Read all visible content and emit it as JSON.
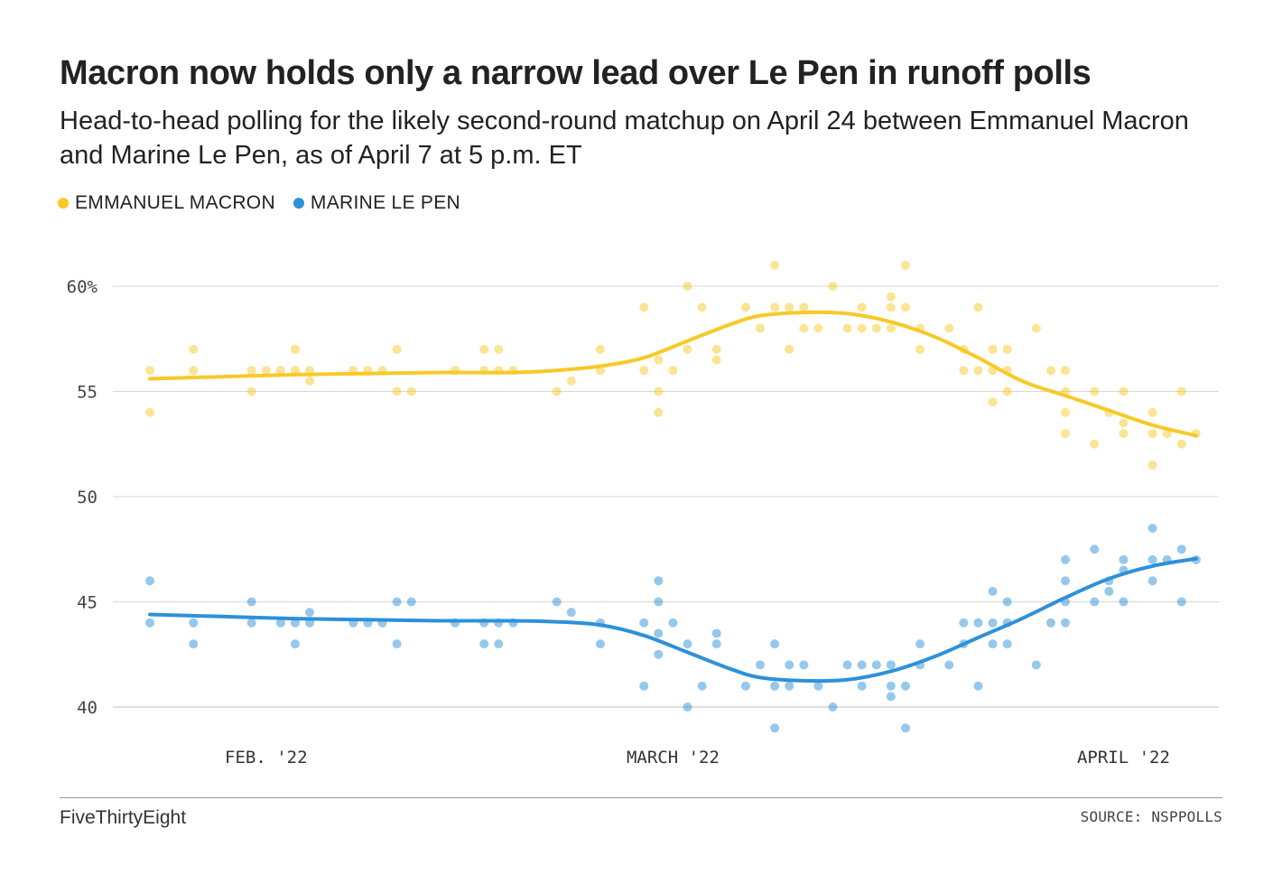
{
  "chart_data": {
    "type": "scatter",
    "title": "Macron now holds only a narrow lead over Le Pen in runoff polls",
    "subtitle": "Head-to-head polling for the likely second-round matchup on April 24 between Emmanuel Macron and Marine Le Pen, as of April 7 at 5 p.m. ET",
    "xlabel": "",
    "ylabel": "",
    "ylim": [
      38,
      62
    ],
    "y_ticks": [
      {
        "value": 60,
        "label": "60%"
      },
      {
        "value": 55,
        "label": "55"
      },
      {
        "value": 50,
        "label": "50"
      },
      {
        "value": 45,
        "label": "45"
      },
      {
        "value": 40,
        "label": "40"
      }
    ],
    "x_domain": [
      0,
      73
    ],
    "x_ticks": [
      {
        "value": 8,
        "label": "FEB. '22"
      },
      {
        "value": 36,
        "label": "MARCH '22"
      },
      {
        "value": 67,
        "label": "APRIL '22"
      }
    ],
    "grid": true,
    "series": [
      {
        "name": "EMMANUEL MACRON",
        "color": "#F8C927",
        "points": [
          [
            0,
            56
          ],
          [
            0,
            54
          ],
          [
            3,
            56
          ],
          [
            3,
            57
          ],
          [
            7,
            56
          ],
          [
            7,
            55
          ],
          [
            8,
            56
          ],
          [
            9,
            56
          ],
          [
            10,
            56
          ],
          [
            10,
            57
          ],
          [
            11,
            56
          ],
          [
            11,
            55.5
          ],
          [
            14,
            56
          ],
          [
            15,
            56
          ],
          [
            16,
            56
          ],
          [
            17,
            57
          ],
          [
            17,
            55
          ],
          [
            18,
            55
          ],
          [
            21,
            56
          ],
          [
            23,
            56
          ],
          [
            23,
            57
          ],
          [
            24,
            56
          ],
          [
            24,
            57
          ],
          [
            25,
            56
          ],
          [
            28,
            55
          ],
          [
            29,
            55.5
          ],
          [
            31,
            57
          ],
          [
            31,
            56
          ],
          [
            34,
            59
          ],
          [
            34,
            56
          ],
          [
            35,
            56.5
          ],
          [
            35,
            55
          ],
          [
            35,
            54
          ],
          [
            36,
            56
          ],
          [
            37,
            60
          ],
          [
            37,
            57
          ],
          [
            38,
            59
          ],
          [
            39,
            57
          ],
          [
            39,
            56.5
          ],
          [
            41,
            59
          ],
          [
            42,
            58
          ],
          [
            43,
            61
          ],
          [
            43,
            59
          ],
          [
            44,
            59
          ],
          [
            44,
            57
          ],
          [
            45,
            59
          ],
          [
            45,
            58
          ],
          [
            46,
            58
          ],
          [
            47,
            60
          ],
          [
            48,
            58
          ],
          [
            49,
            59
          ],
          [
            49,
            58
          ],
          [
            50,
            58
          ],
          [
            51,
            59.5
          ],
          [
            51,
            59
          ],
          [
            51,
            58
          ],
          [
            52,
            61
          ],
          [
            52,
            59
          ],
          [
            53,
            58
          ],
          [
            53,
            57
          ],
          [
            55,
            58
          ],
          [
            56,
            57
          ],
          [
            56,
            56
          ],
          [
            57,
            59
          ],
          [
            57,
            56
          ],
          [
            58,
            57
          ],
          [
            58,
            56
          ],
          [
            58,
            54.5
          ],
          [
            59,
            57
          ],
          [
            59,
            56
          ],
          [
            59,
            55
          ],
          [
            61,
            58
          ],
          [
            62,
            56
          ],
          [
            63,
            56
          ],
          [
            63,
            55
          ],
          [
            63,
            54
          ],
          [
            63,
            53
          ],
          [
            65,
            52.5
          ],
          [
            65,
            55
          ],
          [
            66,
            54
          ],
          [
            67,
            55
          ],
          [
            67,
            53.5
          ],
          [
            67,
            53
          ],
          [
            69,
            54
          ],
          [
            69,
            53
          ],
          [
            69,
            51.5
          ],
          [
            70,
            53
          ],
          [
            71,
            55
          ],
          [
            71,
            52.5
          ],
          [
            72,
            53
          ]
        ],
        "trend": [
          [
            0,
            55.6
          ],
          [
            5,
            55.7
          ],
          [
            10,
            55.8
          ],
          [
            15,
            55.85
          ],
          [
            20,
            55.9
          ],
          [
            25,
            55.9
          ],
          [
            28,
            56
          ],
          [
            31,
            56.2
          ],
          [
            34,
            56.6
          ],
          [
            37,
            57.4
          ],
          [
            40,
            58.2
          ],
          [
            42,
            58.6
          ],
          [
            45,
            58.75
          ],
          [
            48,
            58.7
          ],
          [
            51,
            58.3
          ],
          [
            54,
            57.6
          ],
          [
            57,
            56.6
          ],
          [
            60,
            55.5
          ],
          [
            63,
            54.8
          ],
          [
            66,
            54.1
          ],
          [
            69,
            53.4
          ],
          [
            72,
            52.9
          ]
        ]
      },
      {
        "name": "MARINE LE PEN",
        "color": "#2D91D9",
        "points": [
          [
            0,
            46
          ],
          [
            0,
            44
          ],
          [
            3,
            44
          ],
          [
            3,
            43
          ],
          [
            7,
            45
          ],
          [
            7,
            44
          ],
          [
            9,
            44
          ],
          [
            10,
            44
          ],
          [
            10,
            43
          ],
          [
            11,
            44
          ],
          [
            11,
            44.5
          ],
          [
            14,
            44
          ],
          [
            15,
            44
          ],
          [
            16,
            44
          ],
          [
            17,
            45
          ],
          [
            17,
            43
          ],
          [
            18,
            45
          ],
          [
            21,
            44
          ],
          [
            23,
            44
          ],
          [
            23,
            43
          ],
          [
            24,
            44
          ],
          [
            24,
            43
          ],
          [
            25,
            44
          ],
          [
            28,
            45
          ],
          [
            29,
            44.5
          ],
          [
            31,
            44
          ],
          [
            31,
            43
          ],
          [
            34,
            44
          ],
          [
            34,
            41
          ],
          [
            35,
            46
          ],
          [
            35,
            45
          ],
          [
            35,
            43.5
          ],
          [
            35,
            42.5
          ],
          [
            36,
            44
          ],
          [
            37,
            43
          ],
          [
            37,
            40
          ],
          [
            38,
            41
          ],
          [
            39,
            43.5
          ],
          [
            39,
            43
          ],
          [
            41,
            41
          ],
          [
            42,
            42
          ],
          [
            43,
            43
          ],
          [
            43,
            41
          ],
          [
            43,
            39
          ],
          [
            44,
            42
          ],
          [
            44,
            41
          ],
          [
            45,
            42
          ],
          [
            46,
            41
          ],
          [
            47,
            40
          ],
          [
            48,
            42
          ],
          [
            49,
            42
          ],
          [
            49,
            41
          ],
          [
            50,
            42
          ],
          [
            51,
            42
          ],
          [
            51,
            41
          ],
          [
            51,
            40.5
          ],
          [
            52,
            41
          ],
          [
            52,
            39
          ],
          [
            53,
            43
          ],
          [
            53,
            42
          ],
          [
            55,
            42
          ],
          [
            56,
            44
          ],
          [
            56,
            43
          ],
          [
            57,
            44
          ],
          [
            57,
            41
          ],
          [
            58,
            45.5
          ],
          [
            58,
            44
          ],
          [
            58,
            43
          ],
          [
            59,
            45
          ],
          [
            59,
            44
          ],
          [
            59,
            43
          ],
          [
            61,
            42
          ],
          [
            62,
            44
          ],
          [
            63,
            47
          ],
          [
            63,
            46
          ],
          [
            63,
            45
          ],
          [
            63,
            44
          ],
          [
            65,
            47.5
          ],
          [
            65,
            45
          ],
          [
            66,
            46
          ],
          [
            66,
            45.5
          ],
          [
            67,
            47
          ],
          [
            67,
            46.5
          ],
          [
            67,
            45
          ],
          [
            69,
            48.5
          ],
          [
            69,
            47
          ],
          [
            69,
            46
          ],
          [
            70,
            47
          ],
          [
            71,
            47.5
          ],
          [
            71,
            45
          ],
          [
            72,
            47
          ]
        ],
        "trend": [
          [
            0,
            44.4
          ],
          [
            5,
            44.3
          ],
          [
            10,
            44.2
          ],
          [
            15,
            44.15
          ],
          [
            20,
            44.1
          ],
          [
            25,
            44.1
          ],
          [
            28,
            44.05
          ],
          [
            31,
            43.9
          ],
          [
            34,
            43.4
          ],
          [
            37,
            42.6
          ],
          [
            40,
            41.8
          ],
          [
            42,
            41.4
          ],
          [
            45,
            41.25
          ],
          [
            48,
            41.3
          ],
          [
            51,
            41.7
          ],
          [
            54,
            42.4
          ],
          [
            57,
            43.3
          ],
          [
            60,
            44.2
          ],
          [
            63,
            45.2
          ],
          [
            66,
            46.1
          ],
          [
            69,
            46.7
          ],
          [
            72,
            47.05
          ]
        ]
      }
    ],
    "legend_position": "top-left"
  },
  "footer": {
    "brand": "FiveThirtyEight",
    "source": "SOURCE: NSPPOLLS"
  }
}
